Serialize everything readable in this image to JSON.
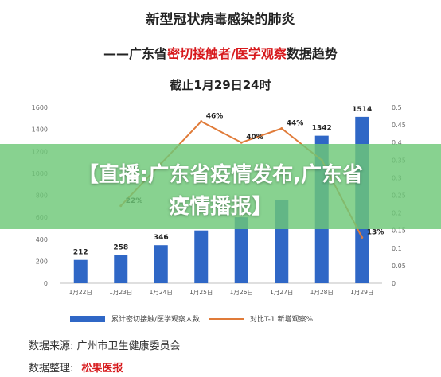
{
  "titles": {
    "main": "新型冠状病毒感染的肺炎",
    "sub_prefix": "——广东省",
    "sub_red": "密切接触者/医学观察",
    "sub_suffix": "数据趋势",
    "date": "截止1月29日24时"
  },
  "colors": {
    "bar": "#2f67c6",
    "line": "#e07b39",
    "banner": "#6ec878",
    "highlight_text": "#d7191c"
  },
  "chart_data": {
    "type": "bar",
    "categories": [
      "1月22日",
      "1月23日",
      "1月24日",
      "1月25日",
      "1月26日",
      "1月27日",
      "1月28日",
      "1月29日"
    ],
    "series": [
      {
        "name": "累计密切接触/医学观察人数",
        "type": "bar",
        "axis": "left",
        "values": [
          212,
          258,
          346,
          480,
          600,
          760,
          1342,
          1514
        ],
        "labels": [
          "212",
          "258",
          "346",
          "",
          "",
          "",
          "1342",
          "1514"
        ]
      },
      {
        "name": "对比T-1 新增观察%",
        "type": "line",
        "axis": "right",
        "values": [
          null,
          0.22,
          0.34,
          0.46,
          0.4,
          0.44,
          0.35,
          0.13
        ],
        "labels": [
          "",
          "22%",
          "",
          "46%",
          "40%",
          "44%",
          "",
          "13%"
        ]
      }
    ],
    "y_left": {
      "min": 0,
      "max": 1600,
      "ticks": [
        "0",
        "200",
        "400",
        "600",
        "800",
        "1000",
        "1200",
        "1400",
        "1600"
      ]
    },
    "y_right": {
      "min": 0,
      "max": 0.5,
      "ticks": [
        "0",
        "0.05",
        "0.1",
        "0.15",
        "0.2",
        "0.25",
        "0.3",
        "0.35",
        "0.4",
        "0.45",
        "0.5"
      ]
    },
    "legend_position": "bottom",
    "grid": false
  },
  "legend": {
    "bar_label": "累计密切接触/医学观察人数",
    "line_label": "对比T-1 新增观察%"
  },
  "source": {
    "label": "数据来源:",
    "value": "广州市卫生健康委员会",
    "editor_label": "数据整理:",
    "editor_value": "松果医报"
  },
  "banner": {
    "line1": "【直播:广东省疫情发布,广东省",
    "line2": "疫情播报】"
  }
}
